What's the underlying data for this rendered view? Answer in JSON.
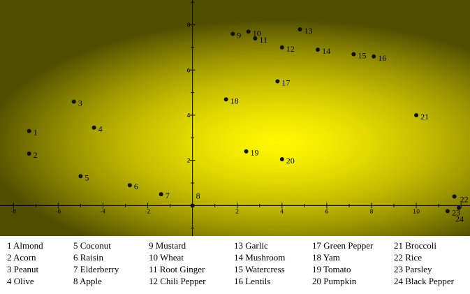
{
  "chart_data": {
    "type": "scatter",
    "xlim": [
      -8.6,
      12.4
    ],
    "ylim": [
      -1.35,
      9.1
    ],
    "x_ticks": [
      -8,
      -6,
      -4,
      -2,
      2,
      4,
      6,
      8,
      10
    ],
    "y_ticks": [
      2,
      4,
      6,
      8
    ],
    "grid": false,
    "legend_position": "bottom",
    "background": {
      "type": "radial",
      "center": [
        4,
        3
      ],
      "inner_color": "#fff700",
      "outer_color": "#504f00"
    },
    "point_color": "#111111",
    "points": [
      {
        "id": "1",
        "x": -7.3,
        "y": 3.3,
        "label": "1 Almond"
      },
      {
        "id": "2",
        "x": -7.3,
        "y": 2.3,
        "label": "2 Acorn"
      },
      {
        "id": "3",
        "x": -5.3,
        "y": 4.6,
        "label": "3 Peanut"
      },
      {
        "id": "4",
        "x": -4.4,
        "y": 3.45,
        "label": "4 Olive"
      },
      {
        "id": "5",
        "x": -5.0,
        "y": 1.3,
        "label": "5 Coconut"
      },
      {
        "id": "6",
        "x": -2.8,
        "y": 0.9,
        "label": "6 Raisin"
      },
      {
        "id": "7",
        "x": -1.4,
        "y": 0.5,
        "label": "7 Elderberry"
      },
      {
        "id": "8",
        "x": 0.0,
        "y": 0.0,
        "label": "8 Apple"
      },
      {
        "id": "9",
        "x": 1.8,
        "y": 7.6,
        "label": "9 Mustard"
      },
      {
        "id": "10",
        "x": 2.5,
        "y": 7.7,
        "label": "10 Wheat"
      },
      {
        "id": "11",
        "x": 2.8,
        "y": 7.4,
        "label": "11 Root Ginger"
      },
      {
        "id": "12",
        "x": 4.0,
        "y": 7.0,
        "label": "12 Chili Pepper"
      },
      {
        "id": "13",
        "x": 4.8,
        "y": 7.8,
        "label": "13 Garlic"
      },
      {
        "id": "14",
        "x": 5.6,
        "y": 6.9,
        "label": "14 Mushroom"
      },
      {
        "id": "15",
        "x": 7.2,
        "y": 6.7,
        "label": "15 Watercress"
      },
      {
        "id": "16",
        "x": 8.1,
        "y": 6.6,
        "label": "16 Lentils"
      },
      {
        "id": "17",
        "x": 3.8,
        "y": 5.5,
        "label": "17 Green Pepper"
      },
      {
        "id": "18",
        "x": 1.5,
        "y": 4.7,
        "label": "18 Yam"
      },
      {
        "id": "19",
        "x": 2.4,
        "y": 2.4,
        "label": "19 Tomato"
      },
      {
        "id": "20",
        "x": 4.0,
        "y": 2.05,
        "label": "20 Pumpkin"
      },
      {
        "id": "21",
        "x": 10.0,
        "y": 4.0,
        "label": "21 Broccoli"
      },
      {
        "id": "22",
        "x": 11.7,
        "y": 0.4,
        "label": "22 Rice"
      },
      {
        "id": "23",
        "x": 11.4,
        "y": -0.25,
        "label": "23 Parsley"
      },
      {
        "id": "24",
        "x": 11.9,
        "y": -0.1,
        "label": "24 Black Pepper"
      }
    ]
  }
}
